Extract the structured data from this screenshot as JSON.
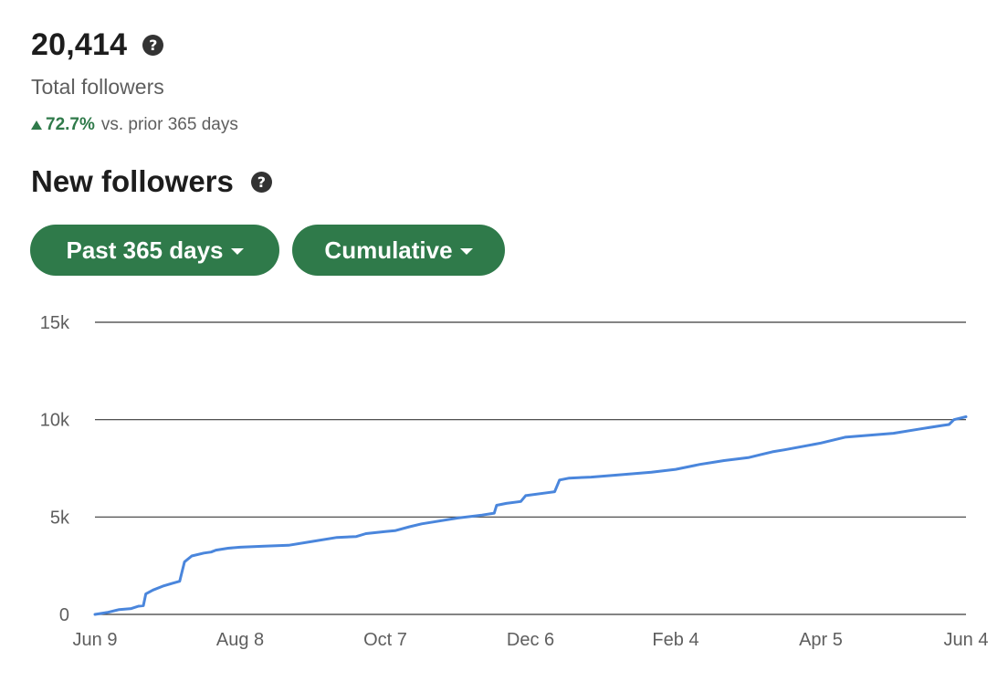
{
  "summary": {
    "total_value": "20,414",
    "total_label": "Total followers",
    "change_value": "72.7%",
    "change_text": "vs. prior 365 days",
    "help_glyph": "?"
  },
  "section": {
    "title": "New followers"
  },
  "filters": {
    "range_label": "Past 365 days",
    "mode_label": "Cumulative"
  },
  "colors": {
    "accent_green": "#2f7a4a",
    "line_blue": "#4a86dc"
  },
  "chart_data": {
    "type": "line",
    "title": "",
    "xlabel": "",
    "ylabel": "",
    "ylim": [
      0,
      15000
    ],
    "y_ticks": [
      0,
      5000,
      10000,
      15000
    ],
    "y_tick_labels": [
      "0",
      "5k",
      "10k",
      "15k"
    ],
    "x_ticks": [
      0,
      60,
      120,
      180,
      240,
      300,
      360
    ],
    "x_tick_labels": [
      "Jun 9",
      "Aug 8",
      "Oct 7",
      "Dec 6",
      "Feb 4",
      "Apr 5",
      "Jun 4"
    ],
    "xlim": [
      0,
      360
    ],
    "grid": true,
    "series": [
      {
        "name": "",
        "x": [
          0,
          5,
          10,
          15,
          18,
          20,
          21,
          24,
          28,
          32,
          35,
          36,
          37,
          40,
          45,
          48,
          50,
          55,
          60,
          70,
          80,
          90,
          100,
          108,
          112,
          120,
          124,
          130,
          135,
          140,
          150,
          160,
          165,
          166,
          170,
          176,
          178,
          187,
          190,
          192,
          196,
          205,
          215,
          230,
          240,
          250,
          260,
          270,
          275,
          280,
          285,
          300,
          310,
          320,
          330,
          340,
          350,
          353,
          355,
          360
        ],
        "y": [
          0,
          100,
          250,
          300,
          420,
          450,
          1050,
          1250,
          1450,
          1600,
          1700,
          2200,
          2700,
          3000,
          3150,
          3200,
          3300,
          3400,
          3450,
          3500,
          3550,
          3750,
          3950,
          4000,
          4150,
          4250,
          4300,
          4500,
          4650,
          4750,
          4950,
          5100,
          5200,
          5600,
          5700,
          5800,
          6100,
          6250,
          6300,
          6900,
          7000,
          7050,
          7150,
          7300,
          7450,
          7700,
          7900,
          8050,
          8200,
          8350,
          8450,
          8800,
          9100,
          9200,
          9300,
          9500,
          9700,
          9750,
          10000,
          10150
        ]
      }
    ]
  }
}
